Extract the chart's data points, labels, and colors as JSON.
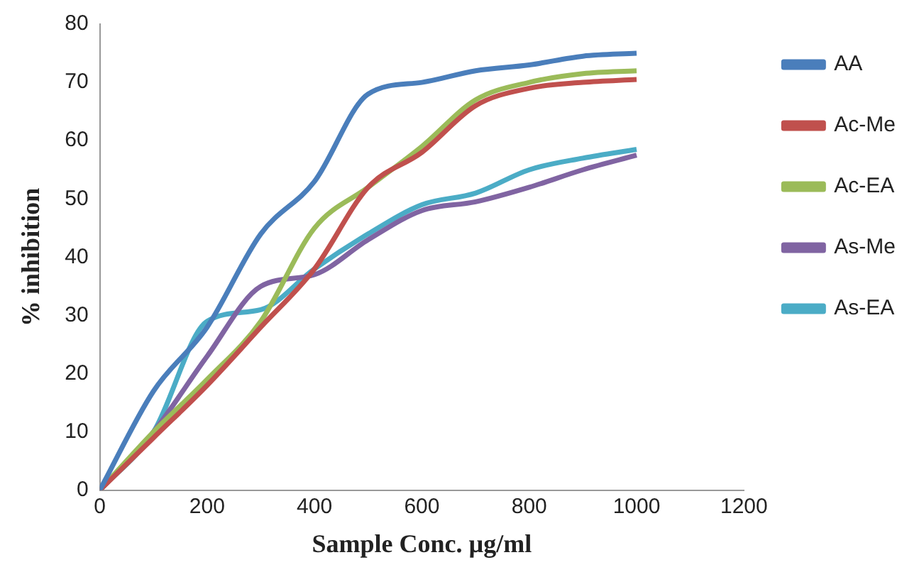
{
  "chart_data": {
    "type": "line",
    "xlabel": "Sample Conc. µg/ml",
    "ylabel": "% inhibition",
    "x": [
      0,
      100,
      200,
      300,
      400,
      500,
      600,
      700,
      800,
      900,
      1000
    ],
    "series": [
      {
        "name": "AA",
        "color": "#4a7ebb",
        "values": [
          0,
          17,
          28,
          44,
          53,
          68,
          70,
          72,
          73,
          74.5,
          75
        ]
      },
      {
        "name": "Ac-Me",
        "color": "#c0504d",
        "values": [
          0,
          9,
          18,
          28,
          38,
          52,
          58,
          66,
          69,
          70,
          70.5
        ]
      },
      {
        "name": "Ac-EA",
        "color": "#9bbb59",
        "values": [
          0,
          10,
          19,
          29,
          45,
          52,
          59,
          67,
          70,
          71.5,
          72
        ]
      },
      {
        "name": "As-Me",
        "color": "#8064a2",
        "values": [
          0,
          10,
          23,
          35,
          37,
          43,
          48,
          49.5,
          52,
          55,
          57.5
        ]
      },
      {
        "name": "As-EA",
        "color": "#4bacc6",
        "values": [
          0,
          10,
          29,
          31,
          38,
          44,
          49,
          51,
          55,
          57,
          58.5
        ]
      }
    ],
    "xlim": [
      0,
      1200
    ],
    "xticks": [
      0,
      200,
      400,
      600,
      800,
      1000,
      1200
    ],
    "ylim": [
      0,
      80
    ],
    "yticks": [
      0,
      10,
      20,
      30,
      40,
      50,
      60,
      70,
      80
    ],
    "grid": false,
    "legend": "right",
    "marker": "none",
    "line_style": "solid"
  }
}
